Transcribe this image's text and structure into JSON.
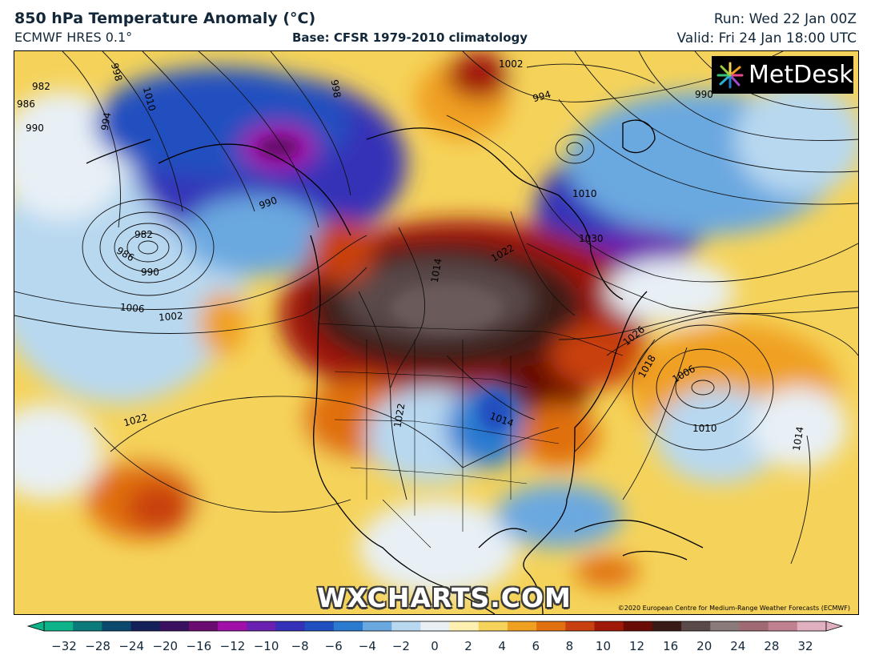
{
  "header": {
    "title": "850 hPa Temperature Anomaly (°C)",
    "model": "ECMWF HRES 0.1°",
    "base": "Base: CFSR 1979-2010 climatology",
    "run": "Run: Wed 22 Jan 00Z",
    "valid": "Valid: Fri 24 Jan 18:00 UTC"
  },
  "logo": {
    "text": "MetDesk"
  },
  "watermark": "WXCHARTS.COM",
  "copyright": "©2020 European Centre for Medium-Range Weather Forecasts (ECMWF)",
  "isobar_labels": [
    "982",
    "986",
    "990",
    "994",
    "998",
    "1010",
    "1002",
    "1006",
    "982",
    "986",
    "990",
    "1022",
    "1002",
    "994",
    "998",
    "990",
    "1010",
    "1030",
    "1014",
    "1022",
    "1026",
    "1018",
    "1006",
    "1010",
    "1014",
    "1014",
    "1022",
    "990"
  ],
  "colorbar": {
    "ticks": [
      "−32",
      "−28",
      "−24",
      "−20",
      "−16",
      "−12",
      "−10",
      "−8",
      "−6",
      "−4",
      "−2",
      "0",
      "2",
      "4",
      "6",
      "8",
      "10",
      "12",
      "16",
      "20",
      "24",
      "28",
      "32"
    ],
    "colors": [
      "#0fb38a",
      "#0a7a7a",
      "#0b4a6e",
      "#14205a",
      "#3a1060",
      "#6a0c70",
      "#a010a8",
      "#6a20b0",
      "#3530b8",
      "#2050c0",
      "#2a7ad0",
      "#6aa8e0",
      "#b8d8f0",
      "#e8f0f6",
      "#fdf0b0",
      "#f5d35a",
      "#f0a020",
      "#e07010",
      "#c84010",
      "#a01808",
      "#6a0c06",
      "#3a1a16",
      "#5a4a4a",
      "#8a7a7a",
      "#a06a72",
      "#c08090",
      "#e0b0c0"
    ]
  }
}
